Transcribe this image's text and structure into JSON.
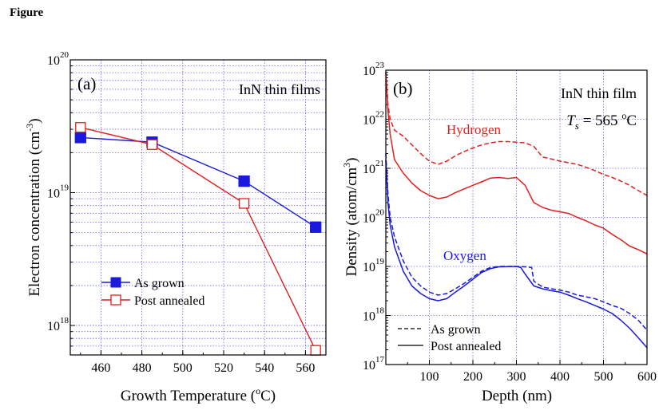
{
  "figure_heading": "Figure",
  "colors": {
    "blue": "#1a1adf",
    "red": "#e02020",
    "grid": "#6a6ae6",
    "axis": "#000000"
  },
  "chart_data": [
    {
      "type": "line",
      "panel_label": "(a)",
      "annotation": "InN thin films",
      "xlabel": "Growth Temperature (",
      "xlabel_sup": "o",
      "xlabel_tail": "C)",
      "ylabel": "Electron concentration (cm",
      "ylabel_sup": "-3",
      "ylabel_tail": ")",
      "xlim": [
        445,
        570
      ],
      "ylim": [
        6e+17,
        1e+20
      ],
      "y_scale": "log",
      "grid": true,
      "x_ticks": [
        "460",
        "480",
        "500",
        "520",
        "540",
        "560"
      ],
      "y_ticks": [
        {
          "base": "10",
          "exp": "18"
        },
        {
          "base": "10",
          "exp": "19"
        },
        {
          "base": "10",
          "exp": "20"
        }
      ],
      "legend_position": "lower-left",
      "series": [
        {
          "name": "As grown",
          "color": "#1a1adf",
          "marker": "filled-square",
          "x": [
            450,
            485,
            530,
            565
          ],
          "y": [
            2.6e+19,
            2.4e+19,
            1.22e+19,
            5.5e+18
          ]
        },
        {
          "name": "Post annealed",
          "color": "#e02020",
          "marker": "open-square",
          "x": [
            450,
            485,
            530,
            565
          ],
          "y": [
            3.1e+19,
            2.3e+19,
            8.3e+18,
            6.5e+17
          ]
        }
      ]
    },
    {
      "type": "line",
      "panel_label": "(b)",
      "annotation_line1": "InN thin film",
      "annotation_ts_symbol": "T",
      "annotation_ts_sub": "s",
      "annotation_ts_value": " = 565 ",
      "annotation_ts_sup": "o",
      "annotation_ts_unit": "C",
      "label_hydrogen": "Hydrogen",
      "label_oxygen": "Oxygen",
      "xlabel": "Depth (nm)",
      "ylabel": "Density (atom/cm",
      "ylabel_sup": "3",
      "ylabel_tail": ")",
      "xlim": [
        0,
        600
      ],
      "ylim": [
        1e+17,
        1e+23
      ],
      "y_scale": "log",
      "grid": true,
      "x_ticks": [
        "100",
        "200",
        "300",
        "400",
        "500",
        "600"
      ],
      "y_ticks": [
        {
          "base": "10",
          "exp": "17"
        },
        {
          "base": "10",
          "exp": "18"
        },
        {
          "base": "10",
          "exp": "19"
        },
        {
          "base": "10",
          "exp": "20"
        },
        {
          "base": "10",
          "exp": "21"
        },
        {
          "base": "10",
          "exp": "22"
        },
        {
          "base": "10",
          "exp": "23"
        }
      ],
      "legend_position": "lower-left",
      "legend": [
        {
          "name": "As grown",
          "style": "dashed"
        },
        {
          "name": "Post annealed",
          "style": "solid"
        }
      ],
      "series": [
        {
          "element": "Hydrogen",
          "condition": "As grown",
          "color": "#e02020",
          "style": "dashed",
          "x": [
            0,
            5,
            10,
            20,
            40,
            60,
            80,
            100,
            120,
            140,
            160,
            180,
            200,
            220,
            240,
            260,
            280,
            300,
            320,
            340,
            360,
            380,
            400,
            420,
            440,
            460,
            480,
            500,
            520,
            540,
            560,
            580,
            600
          ],
          "y": [
            9e+22,
            2e+22,
            1e+22,
            6e+21,
            4.5e+21,
            3e+21,
            2e+21,
            1.4e+21,
            1.2e+21,
            1.4e+21,
            1.8e+21,
            2.2e+21,
            2.6e+21,
            3e+21,
            3.3e+21,
            3.5e+21,
            3.5e+21,
            3.4e+21,
            3.3e+21,
            2.8e+21,
            1.7e+21,
            1.55e+21,
            1.4e+21,
            1.3e+21,
            1.2e+21,
            1.05e+21,
            9e+20,
            7.5e+20,
            6.5e+20,
            5.5e+20,
            4.5e+20,
            3.5e+20,
            2.8e+20
          ]
        },
        {
          "element": "Hydrogen",
          "condition": "Post annealed",
          "color": "#e02020",
          "style": "solid",
          "x": [
            0,
            5,
            10,
            20,
            40,
            60,
            80,
            100,
            120,
            140,
            160,
            180,
            200,
            220,
            240,
            260,
            280,
            300,
            320,
            340,
            360,
            380,
            400,
            420,
            440,
            460,
            480,
            500,
            520,
            540,
            560,
            580,
            600
          ],
          "y": [
            9e+22,
            1.5e+22,
            5e+21,
            1.5e+21,
            8e+20,
            5e+20,
            3.5e+20,
            2.8e+20,
            2.4e+20,
            2.6e+20,
            3.2e+20,
            3.8e+20,
            4.5e+20,
            5.3e+20,
            6.3e+20,
            6.5e+20,
            6.2e+20,
            6.5e+20,
            4.5e+20,
            2e+20,
            1.6e+20,
            1.4e+20,
            1.3e+20,
            1.2e+20,
            1e+20,
            8.5e+19,
            7e+19,
            6e+19,
            4.5e+19,
            3.5e+19,
            2.6e+19,
            2.2e+19,
            1.8e+19
          ]
        },
        {
          "element": "Oxygen",
          "condition": "As grown",
          "color": "#1a1adf",
          "style": "dashed",
          "x": [
            0,
            5,
            10,
            20,
            40,
            60,
            80,
            100,
            120,
            140,
            160,
            180,
            200,
            220,
            240,
            260,
            280,
            300,
            320,
            335,
            340,
            360,
            380,
            400,
            420,
            440,
            460,
            480,
            500,
            520,
            540,
            560,
            580,
            600
          ],
          "y": [
            2e+21,
            3e+20,
            1e+20,
            4e+19,
            1.3e+19,
            6e+18,
            4e+18,
            3e+18,
            2.6e+18,
            2.8e+18,
            3.5e+18,
            4.5e+18,
            6e+18,
            8e+18,
            9.5e+18,
            1e+19,
            1e+19,
            1e+19,
            9.8e+18,
            9.5e+18,
            5e+18,
            3.8e+18,
            3.5e+18,
            3.3e+18,
            3e+18,
            2.6e+18,
            2.4e+18,
            2.2e+18,
            1.9e+18,
            1.6e+18,
            1.4e+18,
            1.1e+18,
            8e+17,
            5e+17
          ]
        },
        {
          "element": "Oxygen",
          "condition": "Post annealed",
          "color": "#1a1adf",
          "style": "solid",
          "x": [
            0,
            5,
            10,
            20,
            40,
            60,
            80,
            100,
            120,
            140,
            160,
            180,
            200,
            220,
            240,
            260,
            280,
            300,
            310,
            320,
            340,
            360,
            380,
            400,
            420,
            440,
            460,
            480,
            500,
            520,
            540,
            560,
            580,
            600
          ],
          "y": [
            1.5e+21,
            2e+20,
            7e+19,
            2.5e+19,
            8e+18,
            4e+18,
            2.8e+18,
            2.2e+18,
            2e+18,
            2.2e+18,
            3e+18,
            4e+18,
            5.5e+18,
            7.5e+18,
            9e+18,
            9.8e+18,
            9.9e+18,
            1e+19,
            9.5e+18,
            7e+18,
            4e+18,
            3.5e+18,
            3.2e+18,
            3e+18,
            2.6e+18,
            2.2e+18,
            1.9e+18,
            1.6e+18,
            1.35e+18,
            1.1e+18,
            8e+17,
            5.5e+17,
            3.5e+17,
            2.2e+17
          ]
        }
      ]
    }
  ]
}
